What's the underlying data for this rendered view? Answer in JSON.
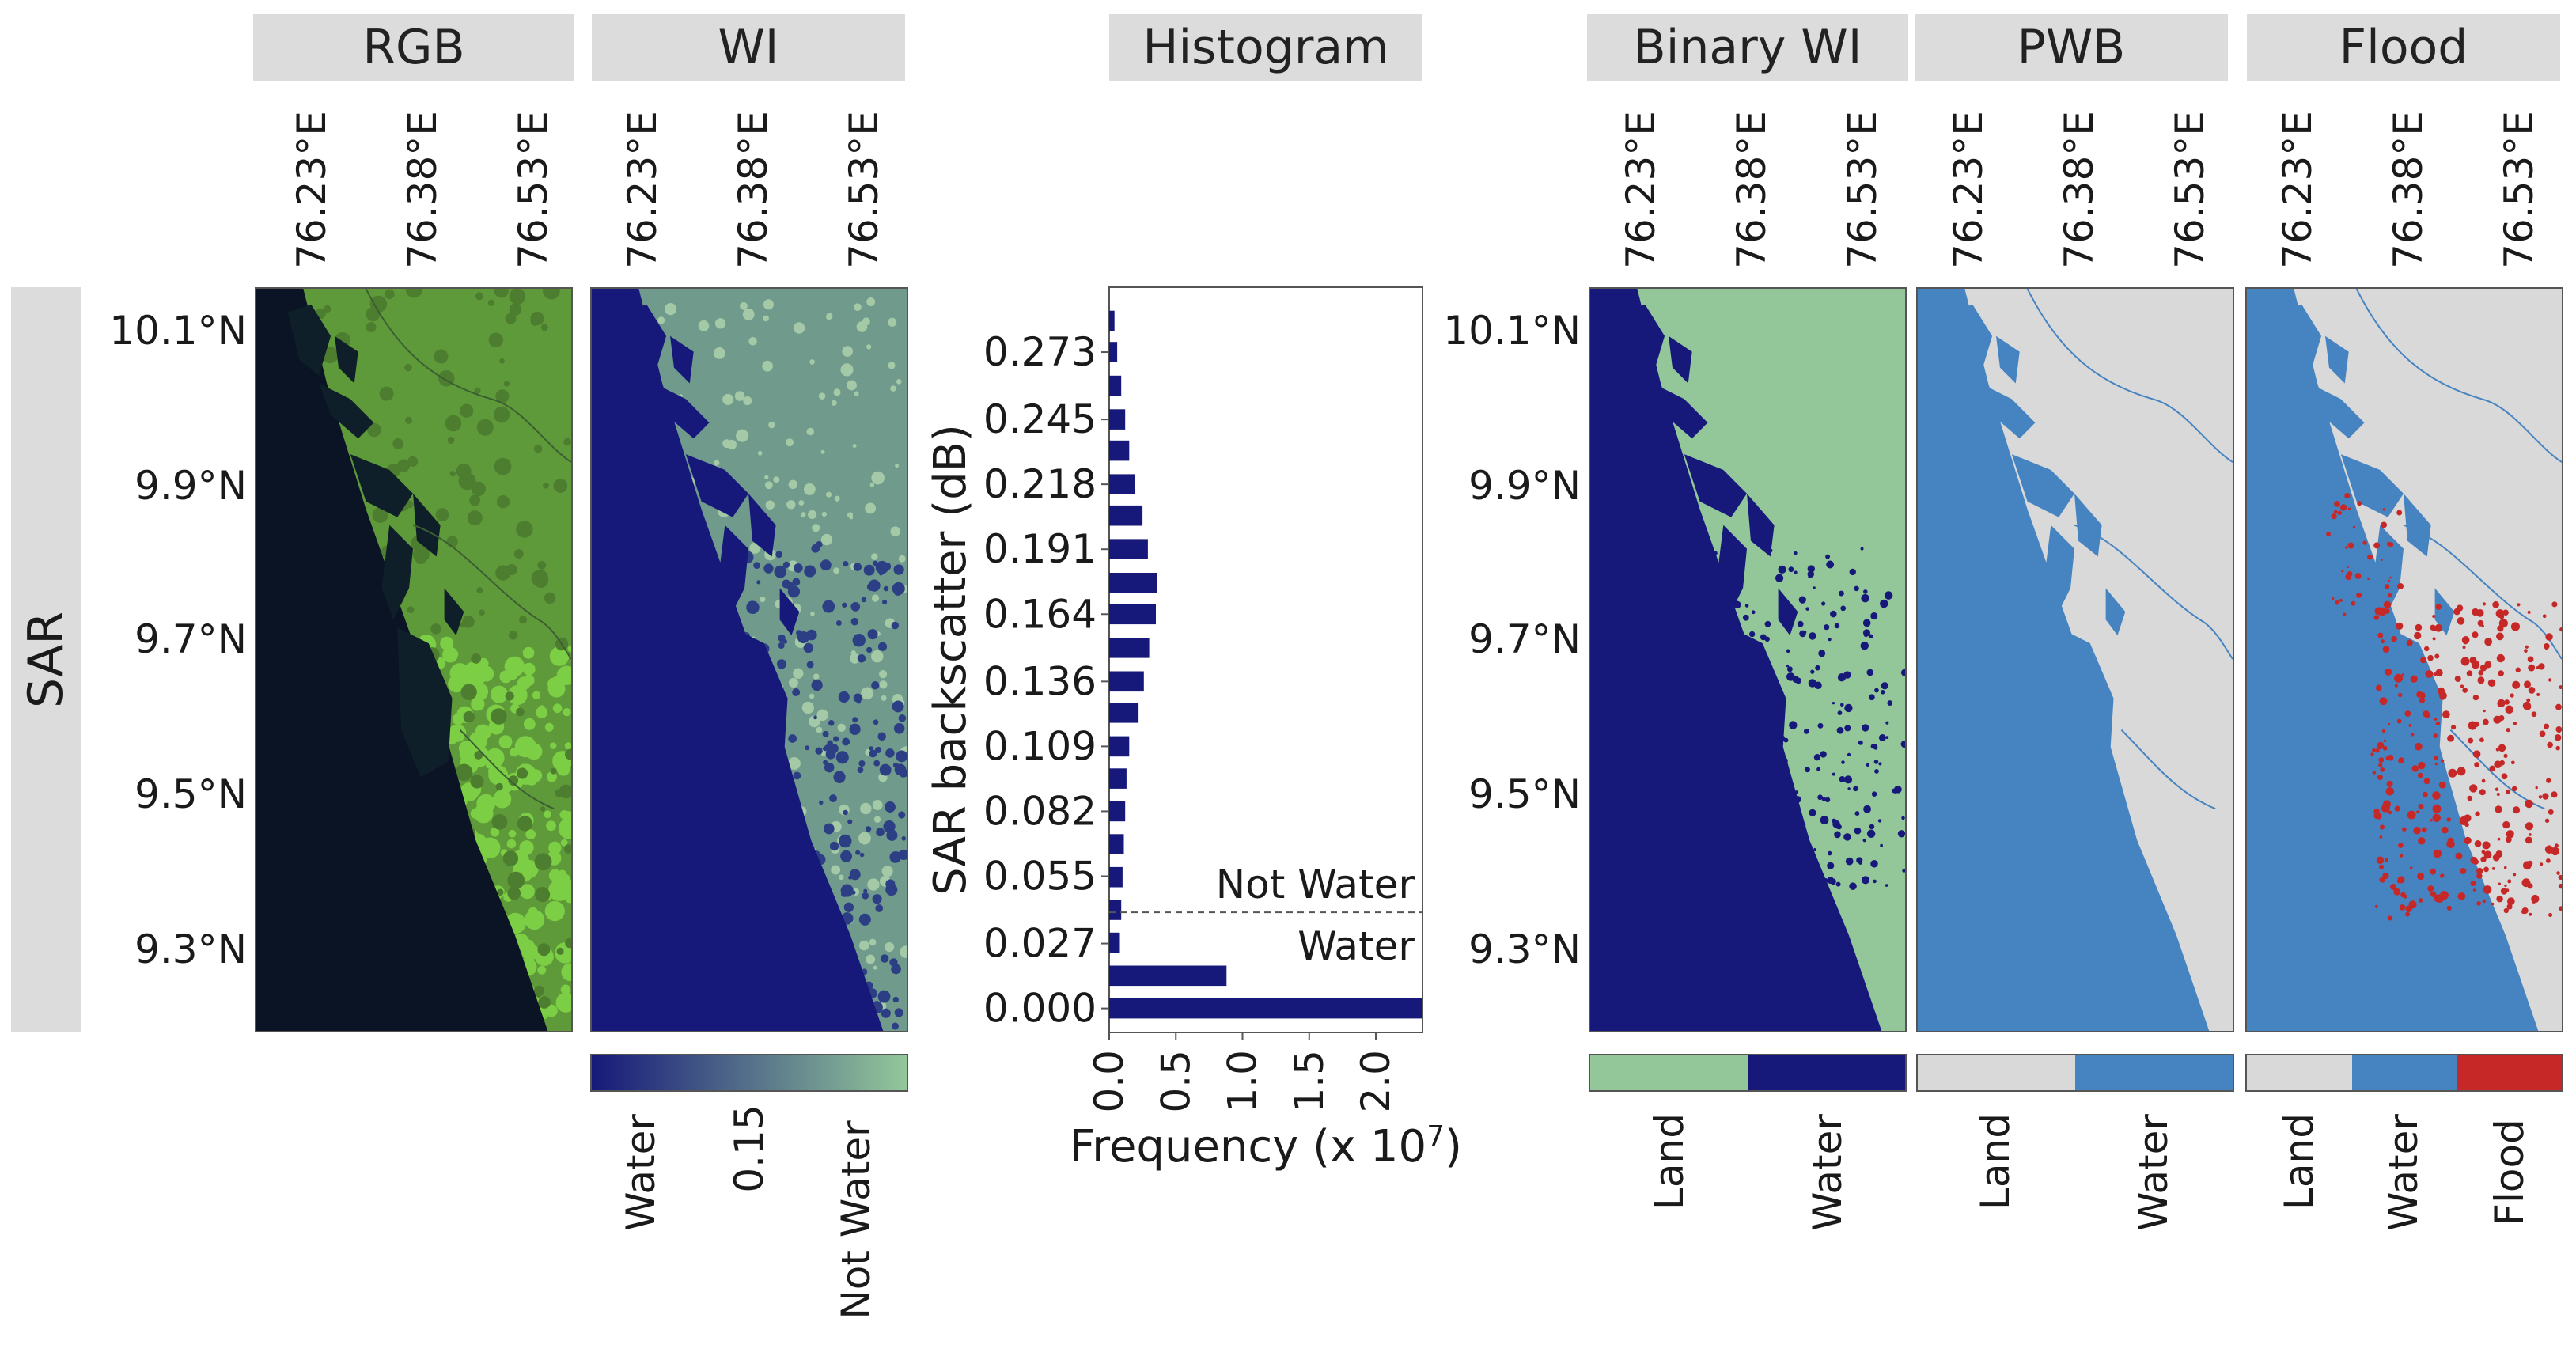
{
  "row_label": "SAR",
  "panels": {
    "rgb": {
      "title": "RGB"
    },
    "wi": {
      "title": "WI",
      "colorbar": {
        "labels": [
          "Water",
          "0.15",
          "Not Water"
        ],
        "colors": [
          "#16197a",
          "#93c79a"
        ]
      }
    },
    "histogram": {
      "title": "Histogram"
    },
    "binary": {
      "title": "Binary WI",
      "colorbar": {
        "labels": [
          "Land",
          "Water"
        ],
        "colors": [
          "#93c79a",
          "#16197a"
        ]
      }
    },
    "pwb": {
      "title": "PWB",
      "colorbar": {
        "labels": [
          "Land",
          "Water"
        ],
        "colors": [
          "#d9d9d9",
          "#4683c1"
        ]
      }
    },
    "flood": {
      "title": "Flood",
      "colorbar": {
        "labels": [
          "Land",
          "Water",
          "Flood"
        ],
        "colors": [
          "#d9d9d9",
          "#4683c1",
          "#c62828"
        ]
      }
    }
  },
  "longitude_ticks": [
    "76.23°E",
    "76.38°E",
    "76.53°E"
  ],
  "latitude_ticks": [
    "10.1°N",
    "9.9°N",
    "9.7°N",
    "9.5°N",
    "9.3°N"
  ],
  "colors": {
    "water": "#16197a",
    "land_green": "#93c79a",
    "pwb_land": "#d9d9d9",
    "pwb_water": "#4683c1",
    "flood": "#c62828"
  },
  "chart_data": {
    "type": "bar",
    "orientation": "horizontal",
    "title": "Histogram",
    "xlabel": "Frequency (x 10^7)",
    "ylabel": "SAR backscatter (dB)",
    "xticks": [
      "0.0",
      "0.5",
      "1.0",
      "1.5",
      "2.0"
    ],
    "xlim": [
      0,
      2.35
    ],
    "ytick_labels": [
      "0.273",
      "0.245",
      "0.218",
      "0.191",
      "0.164",
      "0.136",
      "0.109",
      "0.082",
      "0.055",
      "0.027",
      "0.000"
    ],
    "ytick_values": [
      0.273,
      0.245,
      0.218,
      0.191,
      0.164,
      0.136,
      0.109,
      0.082,
      0.055,
      0.027,
      0.0
    ],
    "ylim": [
      -0.01,
      0.3
    ],
    "bar_centers": [
      0.0,
      0.0136,
      0.0273,
      0.041,
      0.0546,
      0.0683,
      0.082,
      0.0956,
      0.109,
      0.123,
      0.136,
      0.15,
      0.164,
      0.177,
      0.191,
      0.205,
      0.218,
      0.232,
      0.245,
      0.259,
      0.273,
      0.286
    ],
    "values": [
      2.35,
      0.88,
      0.08,
      0.09,
      0.1,
      0.11,
      0.12,
      0.13,
      0.15,
      0.22,
      0.26,
      0.3,
      0.35,
      0.36,
      0.29,
      0.25,
      0.19,
      0.15,
      0.12,
      0.09,
      0.06,
      0.04
    ],
    "threshold": 0.04,
    "annotations": [
      "Not Water",
      "Water"
    ],
    "bar_color": "#16197a"
  }
}
